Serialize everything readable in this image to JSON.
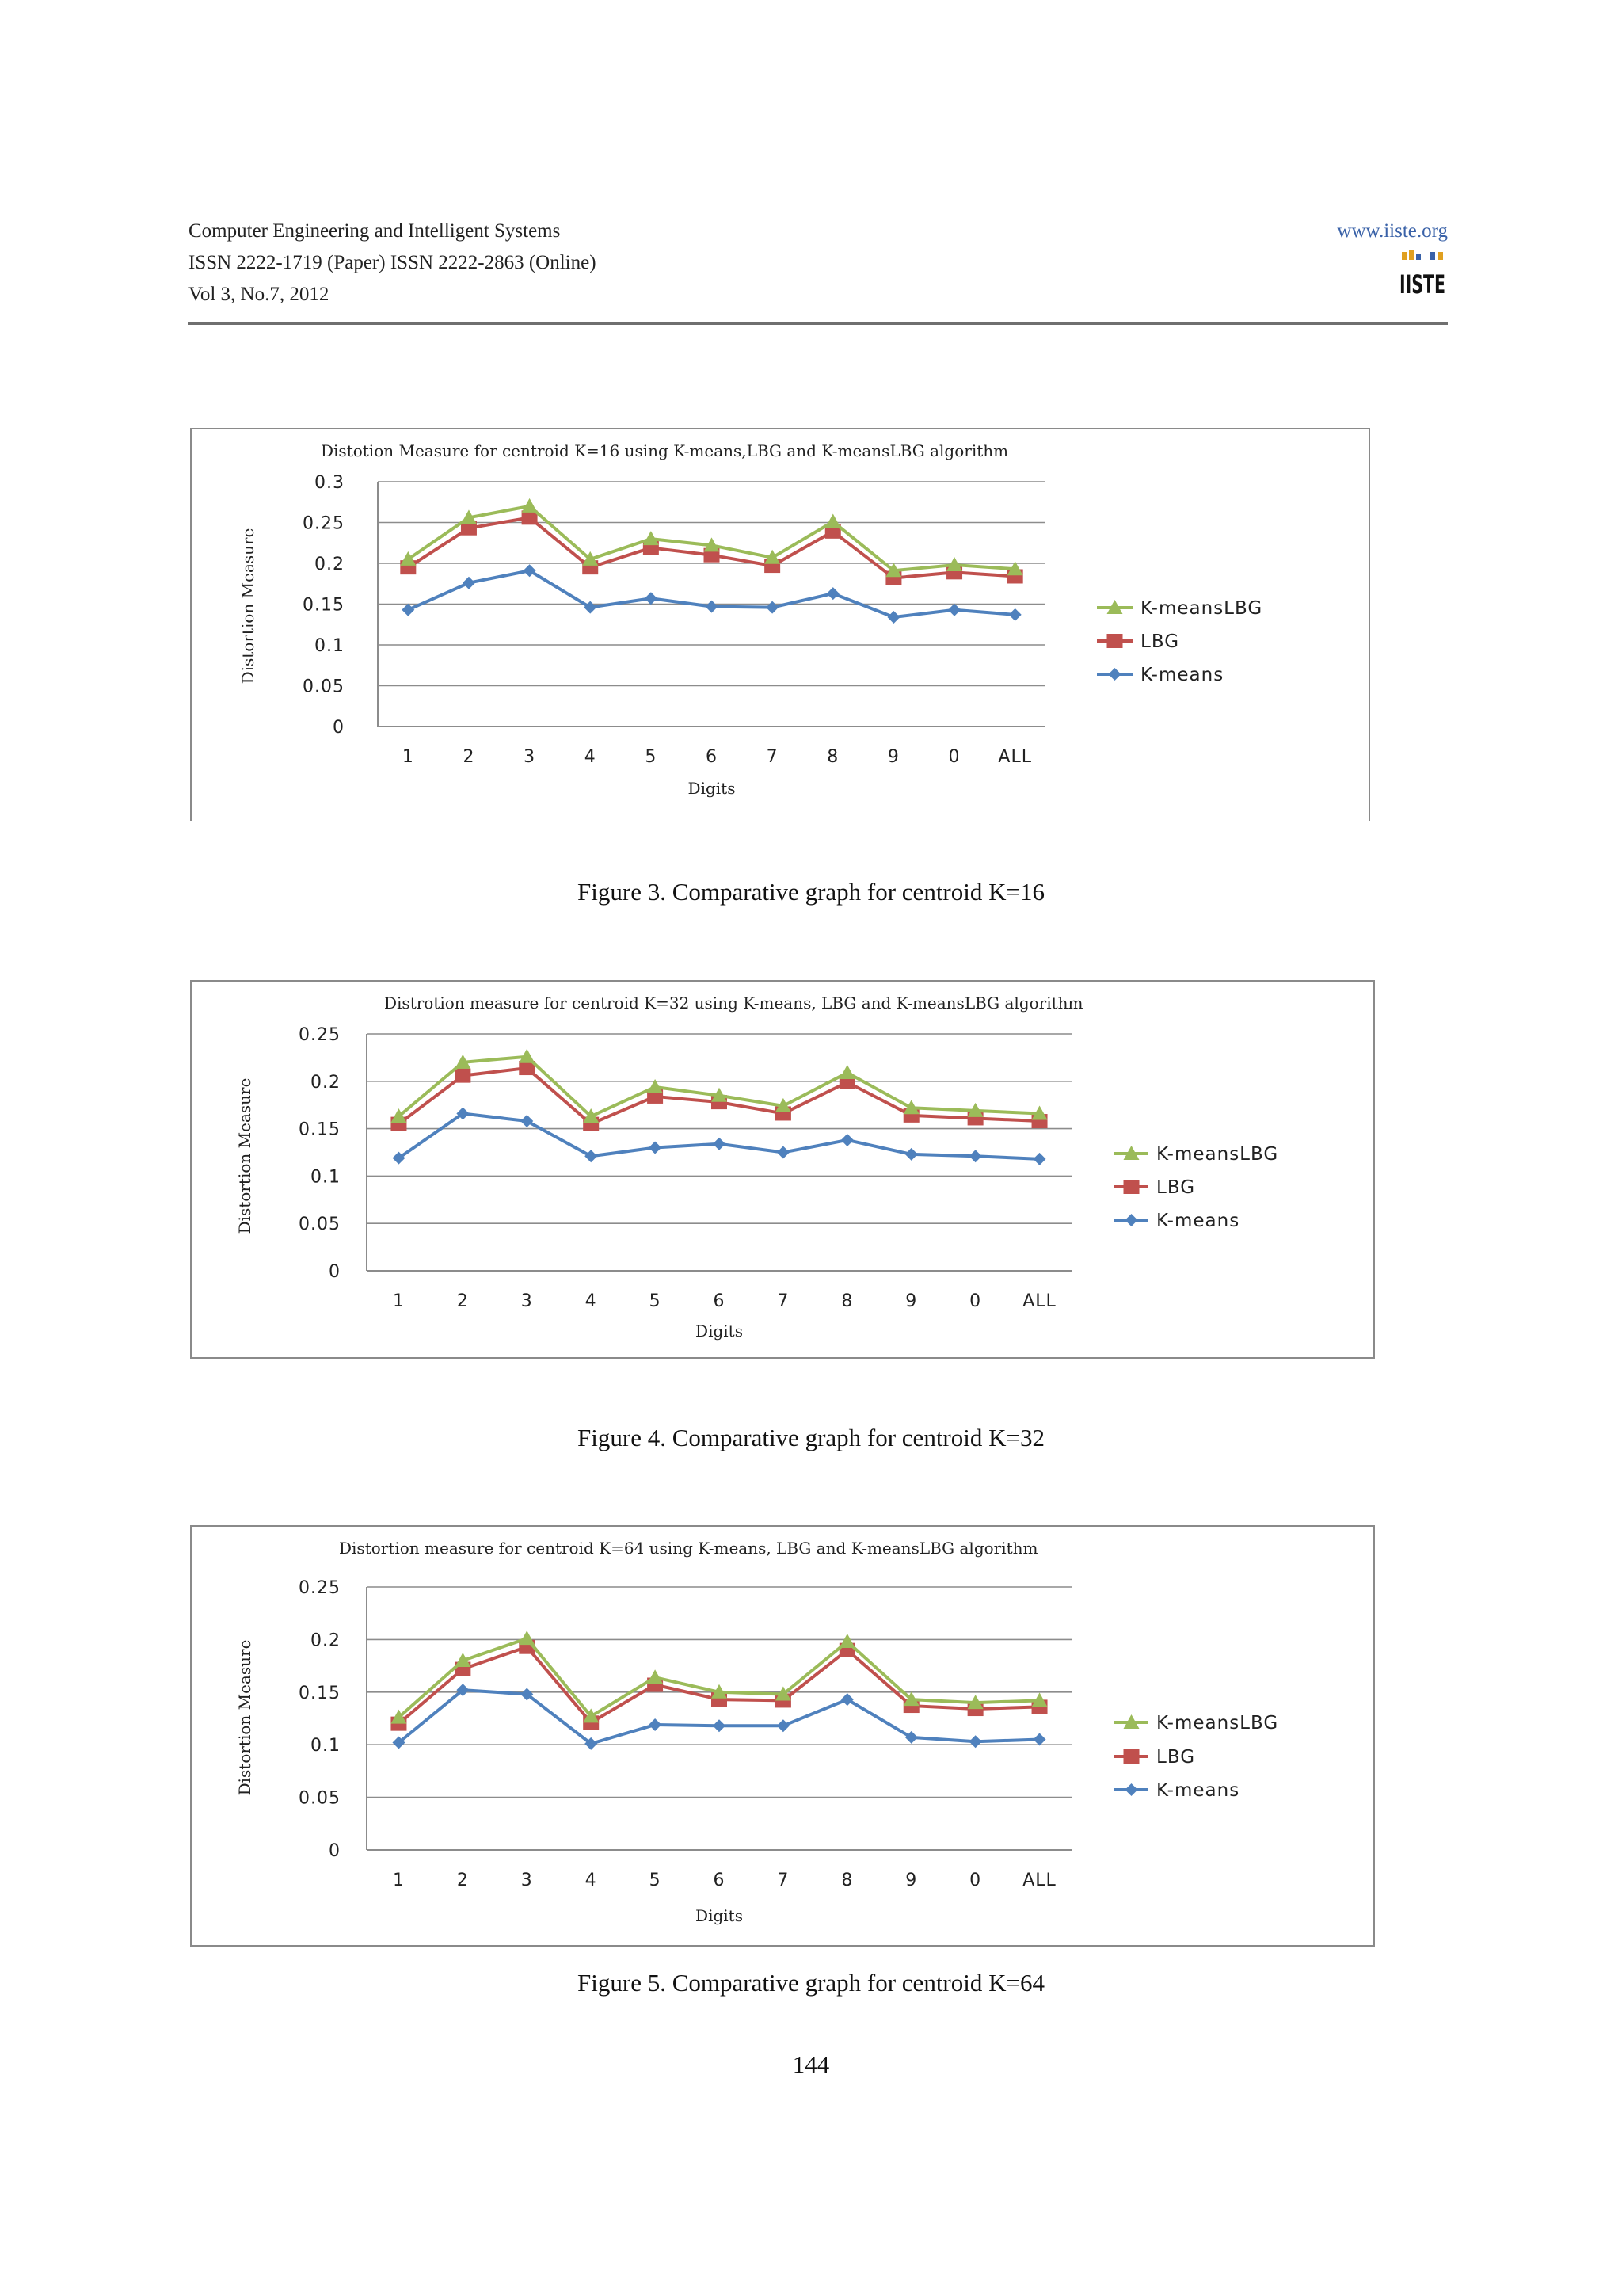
{
  "header": {
    "journal": "Computer Engineering and Intelligent Systems",
    "issn": "ISSN 2222-1719 (Paper) ISSN 2222-2863 (Online)",
    "volume": "Vol 3, No.7, 2012",
    "website": "www.iiste.org",
    "logo_text": "IISTE"
  },
  "figures": [
    {
      "caption": "Figure 3. Comparative graph for centroid K=16"
    },
    {
      "caption": "Figure 4. Comparative graph for centroid K=32"
    },
    {
      "caption": "Figure 5. Comparative graph for centroid K=64"
    }
  ],
  "page_number": "144",
  "chart_data": [
    {
      "type": "line",
      "title": "Distotion Measure for centroid K=16 using K-means,LBG and K-meansLBG algorithm",
      "xlabel": "Digits",
      "ylabel": "Distortion Measure",
      "categories": [
        "1",
        "2",
        "3",
        "4",
        "5",
        "6",
        "7",
        "8",
        "9",
        "0",
        "ALL"
      ],
      "ylim": [
        0,
        0.3
      ],
      "yticks": [
        0,
        0.05,
        0.1,
        0.15,
        0.2,
        0.25,
        0.3
      ],
      "ytick_labels": [
        "0",
        "0.05",
        "0.1",
        "0.15",
        "0.2",
        "0.25",
        "0.3"
      ],
      "grid": true,
      "legend": "right",
      "series": [
        {
          "name": "K-meansLBG",
          "color": "#9bbb59",
          "marker": "triangle",
          "values": [
            0.205,
            0.256,
            0.27,
            0.205,
            0.23,
            0.222,
            0.207,
            0.251,
            0.191,
            0.198,
            0.193
          ]
        },
        {
          "name": "LBG",
          "color": "#c0504d",
          "marker": "square",
          "values": [
            0.195,
            0.243,
            0.256,
            0.195,
            0.219,
            0.21,
            0.197,
            0.239,
            0.182,
            0.189,
            0.184
          ]
        },
        {
          "name": "K-means",
          "color": "#4f81bd",
          "marker": "diamond",
          "values": [
            0.143,
            0.176,
            0.191,
            0.146,
            0.157,
            0.147,
            0.146,
            0.163,
            0.134,
            0.143,
            0.137
          ]
        }
      ]
    },
    {
      "type": "line",
      "title": "Distrotion measure for centroid K=32 using K-means, LBG and  K-meansLBG algorithm",
      "xlabel": "Digits",
      "ylabel": "Distortion Measure",
      "categories": [
        "1",
        "2",
        "3",
        "4",
        "5",
        "6",
        "7",
        "8",
        "9",
        "0",
        "ALL"
      ],
      "ylim": [
        0,
        0.25
      ],
      "yticks": [
        0,
        0.05,
        0.1,
        0.15,
        0.2,
        0.25
      ],
      "ytick_labels": [
        "0",
        "0.05",
        "0.1",
        "0.15",
        "0.2",
        "0.25"
      ],
      "grid": true,
      "legend": "right",
      "series": [
        {
          "name": "K-meansLBG",
          "color": "#9bbb59",
          "marker": "triangle",
          "values": [
            0.163,
            0.22,
            0.226,
            0.163,
            0.194,
            0.185,
            0.174,
            0.209,
            0.172,
            0.169,
            0.166
          ]
        },
        {
          "name": "LBG",
          "color": "#c0504d",
          "marker": "square",
          "values": [
            0.155,
            0.206,
            0.214,
            0.155,
            0.184,
            0.178,
            0.166,
            0.199,
            0.164,
            0.161,
            0.158
          ]
        },
        {
          "name": "K-means",
          "color": "#4f81bd",
          "marker": "diamond",
          "values": [
            0.119,
            0.166,
            0.158,
            0.121,
            0.13,
            0.134,
            0.125,
            0.138,
            0.123,
            0.121,
            0.118
          ]
        }
      ]
    },
    {
      "type": "line",
      "title": "Distortion measure for centroid K=64 using K-means, LBG and  K-meansLBG algorithm",
      "xlabel": "Digits",
      "ylabel": "Distortion Measure",
      "categories": [
        "1",
        "2",
        "3",
        "4",
        "5",
        "6",
        "7",
        "8",
        "9",
        "0",
        "ALL"
      ],
      "ylim": [
        0,
        0.25
      ],
      "yticks": [
        0,
        0.05,
        0.1,
        0.15,
        0.2,
        0.25
      ],
      "ytick_labels": [
        "0",
        "0.05",
        "0.1",
        "0.15",
        "0.2",
        "0.25"
      ],
      "grid": true,
      "legend": "right",
      "series": [
        {
          "name": "K-meansLBG",
          "color": "#9bbb59",
          "marker": "triangle",
          "values": [
            0.126,
            0.18,
            0.201,
            0.127,
            0.164,
            0.15,
            0.148,
            0.198,
            0.143,
            0.14,
            0.142
          ]
        },
        {
          "name": "LBG",
          "color": "#c0504d",
          "marker": "square",
          "values": [
            0.12,
            0.172,
            0.193,
            0.121,
            0.157,
            0.143,
            0.142,
            0.19,
            0.137,
            0.134,
            0.136
          ]
        },
        {
          "name": "K-means",
          "color": "#4f81bd",
          "marker": "diamond",
          "values": [
            0.102,
            0.152,
            0.148,
            0.101,
            0.119,
            0.118,
            0.118,
            0.143,
            0.107,
            0.103,
            0.105
          ]
        }
      ]
    }
  ]
}
